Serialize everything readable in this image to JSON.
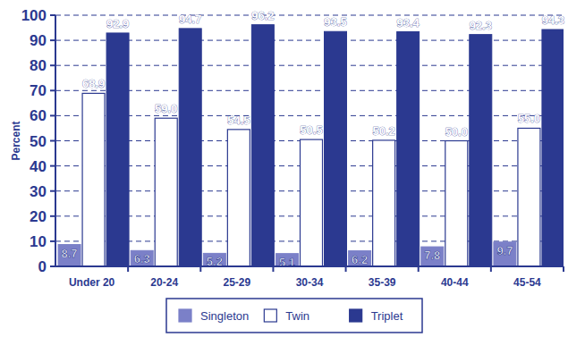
{
  "chart_data": {
    "type": "bar",
    "y_label": "Percent",
    "categories": [
      "Under 20",
      "20-24",
      "25-29",
      "30-34",
      "35-39",
      "40-44",
      "45-54"
    ],
    "series": [
      {
        "name": "Singleton",
        "color": "#7b80c8",
        "values": [
          8.7,
          6.3,
          5.2,
          5.1,
          6.2,
          7.8,
          9.7
        ],
        "value_labels": [
          "8.7",
          "6.3",
          "5.2",
          "5.1",
          "6.2",
          "7.8",
          "9.7"
        ]
      },
      {
        "name": "Twin",
        "color": "#ffffff",
        "values": [
          68.9,
          59,
          54.5,
          50.5,
          50.2,
          50,
          55
        ],
        "value_labels": [
          "68.9",
          "59.0",
          "54.5",
          "50.5",
          "50.2",
          "50.0",
          "55.0"
        ]
      },
      {
        "name": "Triplet",
        "color": "#2b3990",
        "values": [
          92.9,
          94.7,
          96.2,
          93.5,
          93.4,
          92.3,
          94.3
        ],
        "value_labels": [
          "92.9",
          "94.7",
          "96.2",
          "93.5",
          "93.4",
          "92.3",
          "94.3"
        ]
      }
    ],
    "ylim": [
      0,
      100
    ],
    "yticks": [
      0,
      10,
      20,
      30,
      40,
      50,
      60,
      70,
      80,
      90,
      100
    ],
    "grid": true,
    "legend": "bottom",
    "data_labels": true
  }
}
